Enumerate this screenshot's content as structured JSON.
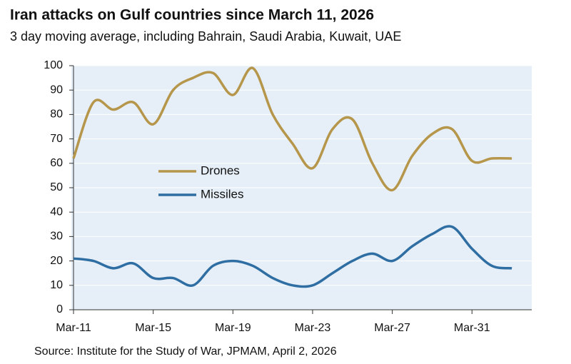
{
  "chart_data": {
    "type": "line",
    "title": "Iran attacks on Gulf countries since March 11, 2026",
    "subtitle": "3 day moving average, including Bahrain, Saudi Arabia, Kuwait, UAE",
    "source": "Source: Institute for the Study of War, JPMAM, April 2, 2026",
    "categories": [
      "Mar-11",
      null,
      null,
      null,
      "Mar-15",
      null,
      null,
      null,
      "Mar-19",
      null,
      null,
      null,
      "Mar-23",
      null,
      null,
      null,
      "Mar-27",
      null,
      null,
      null,
      "Mar-31",
      null,
      null
    ],
    "series": [
      {
        "name": "Drones",
        "color": "#b5964a",
        "values": [
          62,
          85,
          82,
          85,
          76,
          90,
          95,
          97,
          88,
          99,
          80,
          68,
          58,
          74,
          78,
          60,
          49,
          63,
          72,
          74,
          61,
          62,
          62
        ]
      },
      {
        "name": "Missiles",
        "color": "#2f6ea3",
        "values": [
          21,
          20,
          17,
          19,
          13,
          13,
          10,
          18,
          20,
          18,
          13,
          10,
          10,
          15,
          20,
          23,
          20,
          26,
          31,
          34,
          25,
          18,
          17
        ]
      }
    ],
    "ylim": [
      0,
      100
    ],
    "yticks": [
      0,
      10,
      20,
      30,
      40,
      50,
      60,
      70,
      80,
      90,
      100
    ],
    "grid": true
  }
}
